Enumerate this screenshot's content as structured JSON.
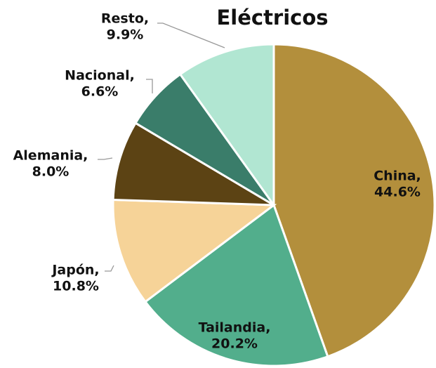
{
  "chart_data": {
    "type": "pie",
    "title": "Eléctricos",
    "categories": [
      "China,",
      "Tailandia,",
      "Japón,",
      "Alemania,",
      "Nacional,",
      "Resto,"
    ],
    "values": [
      44.6,
      20.2,
      10.8,
      8.0,
      6.6,
      9.9
    ],
    "value_labels": [
      "44.6%",
      "20.2%",
      "10.8%",
      "8.0%",
      "6.6%",
      "9.9%"
    ],
    "colors": [
      "#b38f3c",
      "#52ae8c",
      "#f6d398",
      "#5c4314",
      "#3a7d6a",
      "#b1e6d2"
    ]
  }
}
